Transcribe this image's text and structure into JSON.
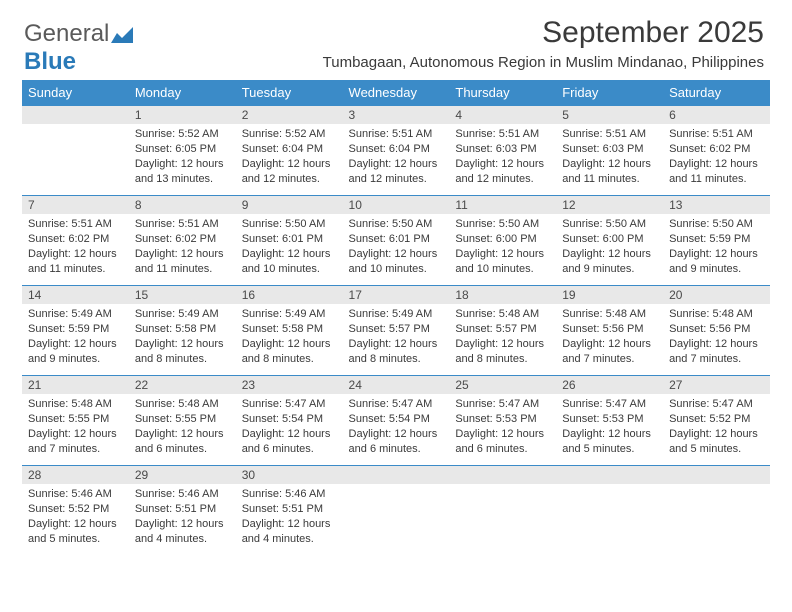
{
  "logo": {
    "text1": "General",
    "text2": "Blue"
  },
  "title": "September 2025",
  "subtitle": "Tumbagaan, Autonomous Region in Muslim Mindanao, Philippines",
  "calendar": {
    "type": "table",
    "header_bg": "#3b8bc8",
    "header_fg": "#ffffff",
    "daynum_bg": "#e8e8e8",
    "border_color": "#3b8bc8",
    "text_color": "#3a3a3a",
    "font_size_header": 13,
    "font_size_daynum": 12,
    "font_size_info": 11,
    "columns": [
      "Sunday",
      "Monday",
      "Tuesday",
      "Wednesday",
      "Thursday",
      "Friday",
      "Saturday"
    ],
    "weeks": [
      [
        {
          "day": "",
          "sunrise": "",
          "sunset": "",
          "daylight": ""
        },
        {
          "day": "1",
          "sunrise": "Sunrise: 5:52 AM",
          "sunset": "Sunset: 6:05 PM",
          "daylight": "Daylight: 12 hours and 13 minutes."
        },
        {
          "day": "2",
          "sunrise": "Sunrise: 5:52 AM",
          "sunset": "Sunset: 6:04 PM",
          "daylight": "Daylight: 12 hours and 12 minutes."
        },
        {
          "day": "3",
          "sunrise": "Sunrise: 5:51 AM",
          "sunset": "Sunset: 6:04 PM",
          "daylight": "Daylight: 12 hours and 12 minutes."
        },
        {
          "day": "4",
          "sunrise": "Sunrise: 5:51 AM",
          "sunset": "Sunset: 6:03 PM",
          "daylight": "Daylight: 12 hours and 12 minutes."
        },
        {
          "day": "5",
          "sunrise": "Sunrise: 5:51 AM",
          "sunset": "Sunset: 6:03 PM",
          "daylight": "Daylight: 12 hours and 11 minutes."
        },
        {
          "day": "6",
          "sunrise": "Sunrise: 5:51 AM",
          "sunset": "Sunset: 6:02 PM",
          "daylight": "Daylight: 12 hours and 11 minutes."
        }
      ],
      [
        {
          "day": "7",
          "sunrise": "Sunrise: 5:51 AM",
          "sunset": "Sunset: 6:02 PM",
          "daylight": "Daylight: 12 hours and 11 minutes."
        },
        {
          "day": "8",
          "sunrise": "Sunrise: 5:51 AM",
          "sunset": "Sunset: 6:02 PM",
          "daylight": "Daylight: 12 hours and 11 minutes."
        },
        {
          "day": "9",
          "sunrise": "Sunrise: 5:50 AM",
          "sunset": "Sunset: 6:01 PM",
          "daylight": "Daylight: 12 hours and 10 minutes."
        },
        {
          "day": "10",
          "sunrise": "Sunrise: 5:50 AM",
          "sunset": "Sunset: 6:01 PM",
          "daylight": "Daylight: 12 hours and 10 minutes."
        },
        {
          "day": "11",
          "sunrise": "Sunrise: 5:50 AM",
          "sunset": "Sunset: 6:00 PM",
          "daylight": "Daylight: 12 hours and 10 minutes."
        },
        {
          "day": "12",
          "sunrise": "Sunrise: 5:50 AM",
          "sunset": "Sunset: 6:00 PM",
          "daylight": "Daylight: 12 hours and 9 minutes."
        },
        {
          "day": "13",
          "sunrise": "Sunrise: 5:50 AM",
          "sunset": "Sunset: 5:59 PM",
          "daylight": "Daylight: 12 hours and 9 minutes."
        }
      ],
      [
        {
          "day": "14",
          "sunrise": "Sunrise: 5:49 AM",
          "sunset": "Sunset: 5:59 PM",
          "daylight": "Daylight: 12 hours and 9 minutes."
        },
        {
          "day": "15",
          "sunrise": "Sunrise: 5:49 AM",
          "sunset": "Sunset: 5:58 PM",
          "daylight": "Daylight: 12 hours and 8 minutes."
        },
        {
          "day": "16",
          "sunrise": "Sunrise: 5:49 AM",
          "sunset": "Sunset: 5:58 PM",
          "daylight": "Daylight: 12 hours and 8 minutes."
        },
        {
          "day": "17",
          "sunrise": "Sunrise: 5:49 AM",
          "sunset": "Sunset: 5:57 PM",
          "daylight": "Daylight: 12 hours and 8 minutes."
        },
        {
          "day": "18",
          "sunrise": "Sunrise: 5:48 AM",
          "sunset": "Sunset: 5:57 PM",
          "daylight": "Daylight: 12 hours and 8 minutes."
        },
        {
          "day": "19",
          "sunrise": "Sunrise: 5:48 AM",
          "sunset": "Sunset: 5:56 PM",
          "daylight": "Daylight: 12 hours and 7 minutes."
        },
        {
          "day": "20",
          "sunrise": "Sunrise: 5:48 AM",
          "sunset": "Sunset: 5:56 PM",
          "daylight": "Daylight: 12 hours and 7 minutes."
        }
      ],
      [
        {
          "day": "21",
          "sunrise": "Sunrise: 5:48 AM",
          "sunset": "Sunset: 5:55 PM",
          "daylight": "Daylight: 12 hours and 7 minutes."
        },
        {
          "day": "22",
          "sunrise": "Sunrise: 5:48 AM",
          "sunset": "Sunset: 5:55 PM",
          "daylight": "Daylight: 12 hours and 6 minutes."
        },
        {
          "day": "23",
          "sunrise": "Sunrise: 5:47 AM",
          "sunset": "Sunset: 5:54 PM",
          "daylight": "Daylight: 12 hours and 6 minutes."
        },
        {
          "day": "24",
          "sunrise": "Sunrise: 5:47 AM",
          "sunset": "Sunset: 5:54 PM",
          "daylight": "Daylight: 12 hours and 6 minutes."
        },
        {
          "day": "25",
          "sunrise": "Sunrise: 5:47 AM",
          "sunset": "Sunset: 5:53 PM",
          "daylight": "Daylight: 12 hours and 6 minutes."
        },
        {
          "day": "26",
          "sunrise": "Sunrise: 5:47 AM",
          "sunset": "Sunset: 5:53 PM",
          "daylight": "Daylight: 12 hours and 5 minutes."
        },
        {
          "day": "27",
          "sunrise": "Sunrise: 5:47 AM",
          "sunset": "Sunset: 5:52 PM",
          "daylight": "Daylight: 12 hours and 5 minutes."
        }
      ],
      [
        {
          "day": "28",
          "sunrise": "Sunrise: 5:46 AM",
          "sunset": "Sunset: 5:52 PM",
          "daylight": "Daylight: 12 hours and 5 minutes."
        },
        {
          "day": "29",
          "sunrise": "Sunrise: 5:46 AM",
          "sunset": "Sunset: 5:51 PM",
          "daylight": "Daylight: 12 hours and 4 minutes."
        },
        {
          "day": "30",
          "sunrise": "Sunrise: 5:46 AM",
          "sunset": "Sunset: 5:51 PM",
          "daylight": "Daylight: 12 hours and 4 minutes."
        },
        {
          "day": "",
          "sunrise": "",
          "sunset": "",
          "daylight": ""
        },
        {
          "day": "",
          "sunrise": "",
          "sunset": "",
          "daylight": ""
        },
        {
          "day": "",
          "sunrise": "",
          "sunset": "",
          "daylight": ""
        },
        {
          "day": "",
          "sunrise": "",
          "sunset": "",
          "daylight": ""
        }
      ]
    ]
  }
}
